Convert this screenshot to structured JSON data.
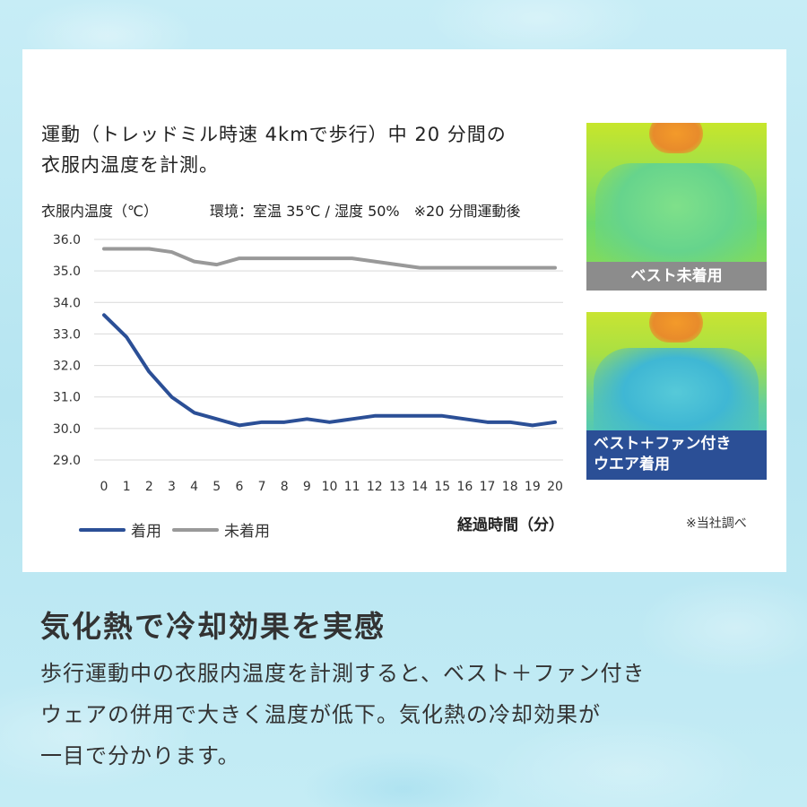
{
  "headline_line1": "運動（トレッドミル時速 4kmで歩行）中 20 分間の",
  "headline_line2": "衣服内温度を計測。",
  "env_note": "環境：室温 35℃ / 湿度 50%　※20 分間運動後",
  "x_axis_title": "経過時間（分）",
  "source_note": "※当社調べ",
  "thermal_images": [
    {
      "label": "ベスト未着用"
    },
    {
      "label_line1": "ベスト＋ファン付き",
      "label_line2": "ウエア着用"
    }
  ],
  "bottom": {
    "title": "気化熱で冷却効果を実感",
    "body_line1": "歩行運動中の衣服内温度を計測すると、ベスト＋ファン付き",
    "body_line2": "ウェアの併用で大きく温度が低下。気化熱の冷却効果が",
    "body_line3": "一目で分かります。"
  },
  "colors": {
    "wearing": "#2b4f96",
    "not_wearing": "#999999",
    "grid": "#d9d9d9"
  },
  "chart_data": {
    "type": "line",
    "title": "",
    "ylabel": "衣服内温度（℃）",
    "xlabel": "経過時間（分）",
    "ylim": [
      29.0,
      36.0
    ],
    "yticks": [
      "36.0",
      "35.0",
      "34.0",
      "33.0",
      "32.0",
      "31.0",
      "30.0",
      "29.0"
    ],
    "x": [
      0,
      1,
      2,
      3,
      4,
      5,
      6,
      7,
      8,
      9,
      10,
      11,
      12,
      13,
      14,
      15,
      16,
      17,
      18,
      19,
      20
    ],
    "grid": true,
    "legend": "bottom-left",
    "series": [
      {
        "name": "着用",
        "values": [
          33.6,
          32.9,
          31.8,
          31.0,
          30.5,
          30.3,
          30.1,
          30.2,
          30.2,
          30.3,
          30.2,
          30.3,
          30.4,
          30.4,
          30.4,
          30.4,
          30.3,
          30.2,
          30.2,
          30.1,
          30.2
        ]
      },
      {
        "name": "未着用",
        "values": [
          35.7,
          35.7,
          35.7,
          35.6,
          35.3,
          35.2,
          35.4,
          35.4,
          35.4,
          35.4,
          35.4,
          35.4,
          35.3,
          35.2,
          35.1,
          35.1,
          35.1,
          35.1,
          35.1,
          35.1,
          35.1
        ]
      }
    ]
  }
}
